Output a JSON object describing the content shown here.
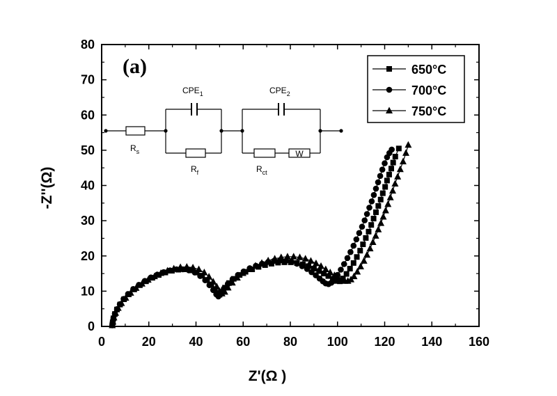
{
  "chart_data": {
    "type": "scatter",
    "panel_label": "(a)",
    "title": "",
    "xlabel": "Z'(Ω )",
    "ylabel": "-Z''(Ω)",
    "xlim": [
      0,
      160
    ],
    "ylim": [
      0,
      80
    ],
    "xticks": [
      0,
      20,
      40,
      60,
      80,
      100,
      120,
      140,
      160
    ],
    "yticks": [
      0,
      10,
      20,
      30,
      40,
      50,
      60,
      70,
      80
    ],
    "grid": false,
    "legend_position": "top-right",
    "series": [
      {
        "name": "650°C",
        "marker": "square",
        "x": [
          4.5,
          4.7,
          5.0,
          5.6,
          6.5,
          7.8,
          9.5,
          11.5,
          13.8,
          16.2,
          18.8,
          21.5,
          24.2,
          27.0,
          29.8,
          32.5,
          35.2,
          37.8,
          40.3,
          42.6,
          44.7,
          46.5,
          48.0,
          49.2,
          50.0,
          51.0,
          52.3,
          54.0,
          56.0,
          58.5,
          61.0,
          63.8,
          66.5,
          69.3,
          72.0,
          74.8,
          77.5,
          80.2,
          82.8,
          85.3,
          87.7,
          90.0,
          92.2,
          94.2,
          96.1,
          98.0,
          99.6,
          101.0,
          102.3,
          103.8,
          105.3,
          106.8,
          108.2,
          109.6,
          110.8,
          112.0,
          113.2,
          114.3,
          115.3,
          116.3,
          117.3,
          118.3,
          119.2,
          120.2,
          121.0,
          121.9,
          122.8,
          123.6,
          124.5,
          126.0
        ],
        "y": [
          0.3,
          1.2,
          2.3,
          3.5,
          4.8,
          6.2,
          7.7,
          9.1,
          10.5,
          11.7,
          12.8,
          13.8,
          14.6,
          15.3,
          15.8,
          16.1,
          16.2,
          15.9,
          15.3,
          14.4,
          13.2,
          11.9,
          10.6,
          9.5,
          9.0,
          9.8,
          11.0,
          12.3,
          13.5,
          14.6,
          15.5,
          16.2,
          16.9,
          17.4,
          17.8,
          18.1,
          18.2,
          18.2,
          18.0,
          17.6,
          17.1,
          16.4,
          15.7,
          15.0,
          14.3,
          13.5,
          12.9,
          12.8,
          13.6,
          14.9,
          16.4,
          18.0,
          19.7,
          21.5,
          23.3,
          25.1,
          26.9,
          28.8,
          30.6,
          32.4,
          34.2,
          36.0,
          37.8,
          39.6,
          41.4,
          43.1,
          44.8,
          46.5,
          48.2,
          50.5
        ]
      },
      {
        "name": "700°C",
        "marker": "circle",
        "x": [
          4.5,
          4.7,
          5.0,
          5.6,
          6.5,
          7.7,
          9.3,
          11.2,
          13.4,
          15.8,
          18.3,
          20.9,
          23.6,
          26.3,
          29.0,
          31.7,
          34.4,
          37.0,
          39.5,
          41.8,
          43.9,
          45.7,
          47.3,
          48.6,
          49.5,
          50.5,
          51.8,
          53.5,
          55.5,
          57.8,
          60.2,
          62.8,
          65.4,
          68.0,
          70.6,
          73.1,
          75.6,
          78.1,
          80.5,
          82.8,
          85.0,
          87.1,
          89.0,
          90.8,
          92.4,
          93.8,
          95.0,
          96.2,
          97.4,
          98.7,
          100.0,
          101.4,
          102.8,
          104.2,
          105.5,
          106.8,
          108.0,
          109.2,
          110.4,
          111.5,
          112.5,
          113.5,
          114.5,
          115.4,
          116.3,
          117.2,
          118.1,
          119.0,
          120.0,
          121.0,
          122.0,
          123.0
        ],
        "y": [
          0.3,
          1.2,
          2.3,
          3.6,
          4.9,
          6.3,
          7.8,
          9.2,
          10.6,
          11.8,
          12.9,
          13.9,
          14.7,
          15.4,
          15.9,
          16.2,
          16.2,
          15.9,
          15.3,
          14.3,
          13.1,
          11.7,
          10.3,
          9.1,
          8.5,
          9.3,
          10.7,
          12.1,
          13.4,
          14.6,
          15.6,
          16.5,
          17.2,
          17.8,
          18.3,
          18.6,
          18.7,
          18.6,
          18.3,
          17.8,
          17.1,
          16.3,
          15.4,
          14.5,
          13.6,
          12.8,
          12.2,
          12.0,
          12.4,
          13.3,
          14.6,
          16.1,
          17.7,
          19.4,
          21.1,
          22.9,
          24.7,
          26.5,
          28.3,
          30.1,
          31.9,
          33.7,
          35.5,
          37.3,
          39.1,
          40.9,
          42.7,
          44.5,
          46.3,
          48.0,
          49.2,
          50.2
        ]
      },
      {
        "name": "750°C",
        "marker": "triangle",
        "x": [
          4.5,
          4.8,
          5.2,
          5.9,
          7.0,
          8.4,
          10.2,
          12.3,
          14.6,
          17.1,
          19.7,
          22.4,
          25.1,
          27.9,
          30.6,
          33.4,
          36.1,
          38.7,
          41.2,
          43.5,
          45.5,
          47.3,
          48.8,
          50.0,
          51.0,
          52.2,
          53.6,
          55.4,
          57.5,
          59.9,
          62.5,
          65.2,
          67.9,
          70.6,
          73.4,
          76.1,
          78.8,
          81.4,
          84.0,
          86.4,
          88.7,
          90.9,
          93.0,
          95.0,
          96.9,
          98.7,
          100.3,
          101.8,
          103.1,
          104.4,
          105.7,
          107.0,
          108.4,
          109.8,
          111.2,
          112.5,
          113.8,
          115.0,
          116.2,
          117.3,
          118.4,
          119.4,
          120.4,
          121.4,
          122.4,
          123.4,
          124.4,
          125.5,
          126.6,
          127.8,
          129.0,
          130.0
        ],
        "y": [
          0.3,
          1.3,
          2.5,
          3.8,
          5.2,
          6.6,
          8.1,
          9.5,
          10.9,
          12.1,
          13.2,
          14.2,
          15.1,
          15.8,
          16.4,
          16.8,
          16.9,
          16.7,
          16.2,
          15.3,
          14.1,
          12.7,
          11.3,
          10.0,
          9.3,
          9.8,
          11.0,
          12.4,
          13.8,
          15.1,
          16.2,
          17.2,
          18.0,
          18.7,
          19.2,
          19.6,
          19.8,
          19.8,
          19.6,
          19.2,
          18.6,
          17.9,
          17.1,
          16.2,
          15.3,
          14.5,
          13.8,
          13.2,
          12.9,
          12.9,
          13.3,
          14.2,
          15.5,
          17.0,
          18.6,
          20.3,
          22.1,
          23.9,
          25.7,
          27.5,
          29.3,
          31.1,
          32.9,
          34.7,
          36.6,
          38.5,
          40.5,
          42.5,
          44.6,
          46.8,
          49.2,
          51.5
        ]
      }
    ]
  },
  "circuit": {
    "labels": {
      "rs_main": "R",
      "rs_sub": "s",
      "cpe1_main": "CPE",
      "cpe1_sub": "1",
      "rf_main": "R",
      "rf_sub": "f",
      "cpe2_main": "CPE",
      "cpe2_sub": "2",
      "rct_main": "R",
      "rct_sub": "ct",
      "w": "W"
    }
  }
}
